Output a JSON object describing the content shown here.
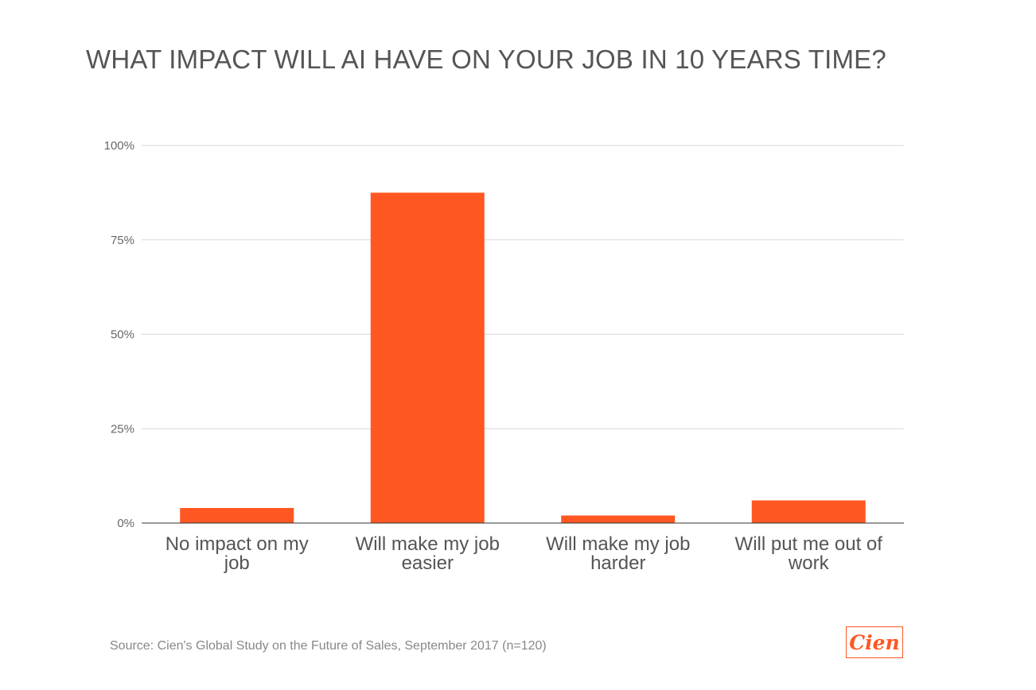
{
  "chart_data": {
    "type": "bar",
    "title": "WHAT IMPACT WILL AI HAVE ON YOUR JOB IN 10 YEARS TIME?",
    "categories": [
      "No impact on my job",
      "Will make my job easier",
      "Will make my job harder",
      "Will put me out of work"
    ],
    "category_lines": [
      [
        "No impact on my",
        "job"
      ],
      [
        "Will make my job",
        "easier"
      ],
      [
        "Will make my job",
        "harder"
      ],
      [
        "Will put me out of",
        "work"
      ]
    ],
    "values": [
      4,
      87.5,
      2,
      6
    ],
    "ylim": [
      0,
      100
    ],
    "yticks": [
      0,
      25,
      50,
      75,
      100
    ],
    "ytick_labels": [
      "0%",
      "25%",
      "50%",
      "75%",
      "100%"
    ],
    "xlabel": "",
    "ylabel": "",
    "grid": true,
    "legend": "none",
    "bar_color": "#ff5722"
  },
  "footer": {
    "source": "Source: Cien's Global Study on the Future of Sales, September 2017 (n=120)",
    "logo_text": "Cien"
  },
  "colors": {
    "accent": "#ff5722",
    "grid": "#d9d9d9",
    "axis": "#333333",
    "text": "#555555"
  }
}
